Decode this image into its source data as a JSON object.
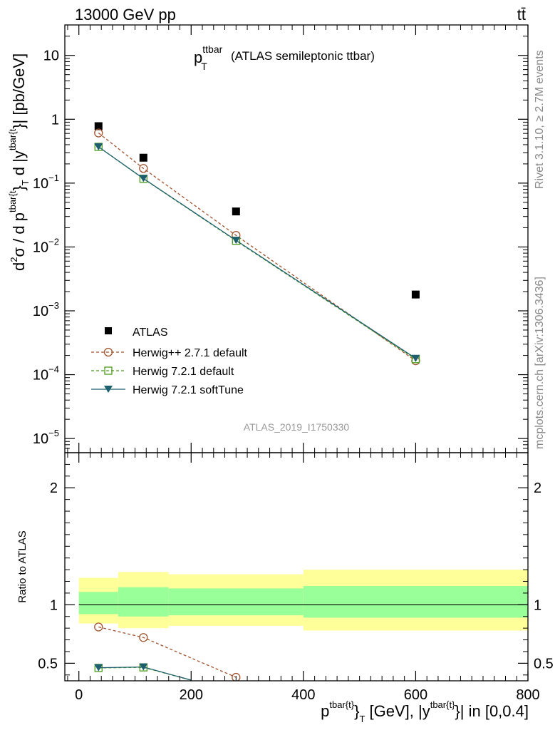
{
  "header": {
    "energy": "13000 GeV pp",
    "process": "tt̄",
    "panel_title_main": "p",
    "panel_title_sup": "ttbar",
    "panel_title_sub": "T",
    "panel_title_rest": "(ATLAS semileptonic ttbar)",
    "analysis_id": "ATLAS_2019_I1750330",
    "side_rivet": "Rivet 3.1.10, ≥ 2.7M events",
    "side_mcplots": "mcplots.cern.ch [arXiv:1306.3436]"
  },
  "chart_data": [
    {
      "panel": "main",
      "type": "scatter",
      "ylog": true,
      "xlim": [
        -25,
        800
      ],
      "ylim": [
        6e-06,
        30
      ],
      "yticks": [
        {
          "value": 1e-05,
          "base": "10",
          "exp": "−5"
        },
        {
          "value": 0.0001,
          "base": "10",
          "exp": "−4"
        },
        {
          "value": 0.001,
          "base": "10",
          "exp": "−3"
        },
        {
          "value": 0.01,
          "base": "10",
          "exp": "−2"
        },
        {
          "value": 0.1,
          "base": "10",
          "exp": "−1"
        },
        {
          "value": 1,
          "base": "1",
          "exp": ""
        },
        {
          "value": 10,
          "base": "10",
          "exp": ""
        }
      ],
      "ylabel": {
        "d2": "d",
        "sup2": "2",
        "sigma": "σ / d p",
        "supA": "tbar{t",
        "brace": "}",
        "subT": "T",
        "mid": " d |y",
        "supB": "tbar{t",
        "tail": "}| [pb/GeV]"
      },
      "series": [
        {
          "name": "ATLAS",
          "x": [
            35,
            115,
            280,
            600
          ],
          "y": [
            0.78,
            0.25,
            0.036,
            0.0018
          ],
          "color": "#000000",
          "marker": "square-filled"
        },
        {
          "name": "Herwig++ 2.7.1 default",
          "x": [
            35,
            115,
            280,
            600
          ],
          "y": [
            0.61,
            0.17,
            0.0152,
            0.000165
          ],
          "color": "#a0522d",
          "marker": "circle-open",
          "dash": "dashed"
        },
        {
          "name": "Herwig 7.2.1 default",
          "x": [
            35,
            115,
            280,
            600
          ],
          "y": [
            0.37,
            0.117,
            0.0125,
            0.000175
          ],
          "color": "#4a9a1a",
          "marker": "square-open",
          "dash": "dashed"
        },
        {
          "name": "Herwig 7.2.1 softTune",
          "x": [
            35,
            115,
            280,
            600
          ],
          "y": [
            0.37,
            0.118,
            0.0127,
            0.00018
          ],
          "color": "#1d5f6e",
          "marker": "triangle-down-filled"
        }
      ]
    },
    {
      "panel": "ratio",
      "type": "line",
      "xlim": [
        -25,
        800
      ],
      "ylim": [
        0.35,
        2.3
      ],
      "yticks": [
        0.5,
        1,
        2
      ],
      "xticks": [
        0,
        200,
        400,
        600,
        800
      ],
      "ylabel": "Ratio to ATLAS",
      "xlabel": {
        "p": "p",
        "supA": "tbar{t}",
        "brace": "}",
        "subT": "T",
        "rest": " [GeV], |y",
        "supB": "tbar{t}",
        "tail": "}| in [0,0.4]"
      },
      "bands": [
        {
          "x0": 0,
          "x1": 70,
          "yellow": [
            0.84,
            1.23
          ],
          "green": [
            0.92,
            1.11
          ]
        },
        {
          "x0": 70,
          "x1": 160,
          "yellow": [
            0.8,
            1.28
          ],
          "green": [
            0.9,
            1.15
          ]
        },
        {
          "x0": 160,
          "x1": 400,
          "yellow": [
            0.82,
            1.26
          ],
          "green": [
            0.91,
            1.14
          ]
        },
        {
          "x0": 400,
          "x1": 800,
          "yellow": [
            0.78,
            1.3
          ],
          "green": [
            0.89,
            1.16
          ]
        }
      ],
      "reference": 1,
      "series": [
        {
          "name": "Herwig++ 2.7.1 default",
          "x": [
            35,
            115,
            280
          ],
          "y": [
            0.81,
            0.72,
            0.38
          ],
          "color": "#a0522d",
          "marker": "circle-open",
          "dash": "dashed"
        },
        {
          "name": "Herwig 7.2.1 default",
          "x": [
            35,
            115,
            200
          ],
          "y": [
            0.46,
            0.465,
            0.355
          ],
          "color": "#4a9a1a",
          "marker": "square-open",
          "dash": "dashed"
        },
        {
          "name": "Herwig 7.2.1 softTune",
          "x": [
            35,
            115,
            200
          ],
          "y": [
            0.462,
            0.468,
            0.356
          ],
          "color": "#1d5f6e",
          "marker": "triangle-down-filled"
        }
      ]
    }
  ]
}
